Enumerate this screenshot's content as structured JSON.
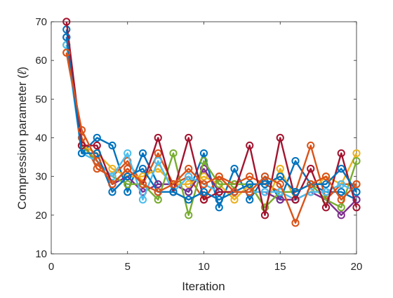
{
  "chart_data": {
    "type": "line",
    "title": "",
    "xlabel": "Iteration",
    "ylabel_prefix": "Compression parameter (",
    "ylabel_symbol": "ℓ",
    "ylabel_suffix": ")",
    "xlim": [
      0,
      20
    ],
    "ylim": [
      10,
      70
    ],
    "xticks": [
      0,
      5,
      10,
      15,
      20
    ],
    "yticks": [
      10,
      20,
      30,
      40,
      50,
      60,
      70
    ],
    "grid": false,
    "legend": "none",
    "marker": "circle",
    "x": [
      1,
      2,
      3,
      4,
      5,
      6,
      7,
      8,
      9,
      10,
      11,
      12,
      13,
      14,
      15,
      16,
      17,
      18,
      19,
      20
    ],
    "series": [
      {
        "color": "#0072BD",
        "values": [
          68,
          36,
          40,
          38,
          26,
          36,
          28,
          28,
          26,
          36,
          22,
          32,
          24,
          30,
          24,
          34,
          28,
          26,
          26,
          24
        ]
      },
      {
        "color": "#D95319",
        "values": [
          62,
          40,
          32,
          30,
          34,
          28,
          36,
          28,
          30,
          24,
          30,
          28,
          30,
          28,
          26,
          26,
          38,
          24,
          28,
          28
        ]
      },
      {
        "color": "#EDB120",
        "values": [
          64,
          38,
          36,
          32,
          30,
          30,
          32,
          28,
          28,
          30,
          28,
          24,
          28,
          22,
          32,
          24,
          26,
          30,
          28,
          36
        ]
      },
      {
        "color": "#7E2F8E",
        "values": [
          66,
          38,
          34,
          28,
          30,
          26,
          28,
          28,
          26,
          32,
          26,
          26,
          26,
          26,
          24,
          24,
          26,
          24,
          20,
          24
        ]
      },
      {
        "color": "#77AC30",
        "values": [
          64,
          38,
          34,
          30,
          28,
          28,
          24,
          36,
          20,
          34,
          28,
          28,
          28,
          22,
          26,
          26,
          28,
          24,
          22,
          34
        ]
      },
      {
        "color": "#4DBEEE",
        "values": [
          64,
          36,
          34,
          30,
          36,
          24,
          34,
          26,
          30,
          28,
          26,
          26,
          26,
          26,
          26,
          24,
          26,
          26,
          28,
          26
        ]
      },
      {
        "color": "#A2142F",
        "values": [
          70,
          38,
          38,
          28,
          32,
          28,
          40,
          26,
          40,
          24,
          26,
          26,
          38,
          20,
          40,
          24,
          32,
          22,
          36,
          22
        ]
      },
      {
        "color": "#0072BD",
        "values": [
          66,
          36,
          36,
          26,
          30,
          32,
          26,
          26,
          24,
          26,
          24,
          26,
          28,
          28,
          30,
          26,
          28,
          28,
          32,
          26
        ]
      },
      {
        "color": "#D95319",
        "values": [
          62,
          42,
          34,
          28,
          32,
          28,
          26,
          28,
          32,
          28,
          30,
          26,
          26,
          30,
          28,
          18,
          28,
          30,
          24,
          28
        ]
      }
    ]
  }
}
